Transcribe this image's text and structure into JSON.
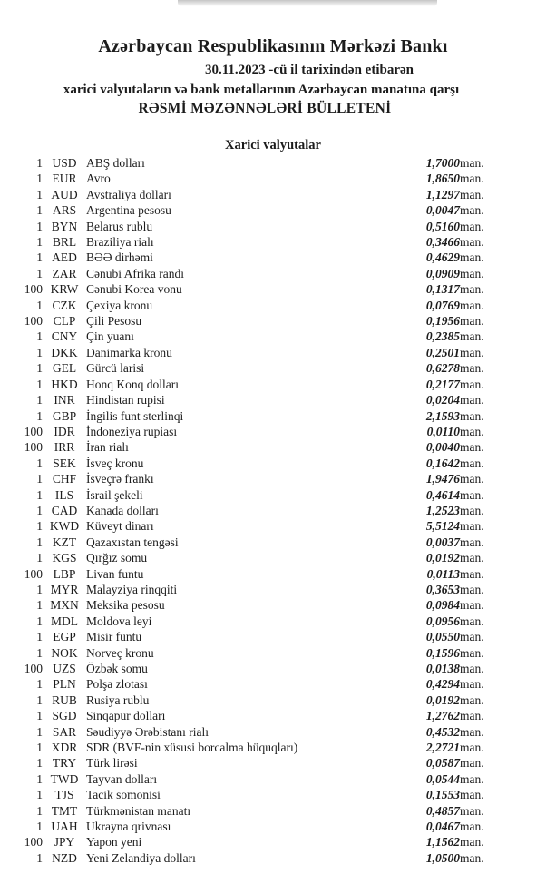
{
  "page": {
    "bank_title": "Azərbaycan Respublikasının Mərkəzi Bankı",
    "date_line": "30.11.2023 -cü il tarixindən etibarən",
    "scope_line": "xarici valyutaların və bank metallarının Azərbaycan manatına qarşı",
    "bulletin_title": "RƏSMİ MƏZƏNNƏLƏRİ BÜLLETENİ",
    "section_title": "Xarici valyutalar",
    "unit_label": "man.",
    "text_color": "#1c1c1c",
    "background_color": "#ffffff"
  },
  "rates": [
    {
      "qty": "1",
      "code": "USD",
      "name": "ABŞ dolları",
      "rate": "1,7000"
    },
    {
      "qty": "1",
      "code": "EUR",
      "name": "Avro",
      "rate": "1,8650"
    },
    {
      "qty": "1",
      "code": "AUD",
      "name": "Avstraliya dolları",
      "rate": "1,1297"
    },
    {
      "qty": "1",
      "code": "ARS",
      "name": "Argentina pesosu",
      "rate": "0,0047"
    },
    {
      "qty": "1",
      "code": "BYN",
      "name": "Belarus rublu",
      "rate": "0,5160"
    },
    {
      "qty": "1",
      "code": "BRL",
      "name": "Braziliya rialı",
      "rate": "0,3466"
    },
    {
      "qty": "1",
      "code": "AED",
      "name": "BƏƏ dirhəmi",
      "rate": "0,4629"
    },
    {
      "qty": "1",
      "code": "ZAR",
      "name": "Cənubi Afrika randı",
      "rate": "0,0909"
    },
    {
      "qty": "100",
      "code": "KRW",
      "name": "Cənubi Korea vonu",
      "rate": "0,1317"
    },
    {
      "qty": "1",
      "code": "CZK",
      "name": "Çexiya kronu",
      "rate": "0,0769"
    },
    {
      "qty": "100",
      "code": "CLP",
      "name": "Çili Pesosu",
      "rate": "0,1956"
    },
    {
      "qty": "1",
      "code": "CNY",
      "name": "Çin yuanı",
      "rate": "0,2385"
    },
    {
      "qty": "1",
      "code": "DKK",
      "name": "Danimarka kronu",
      "rate": "0,2501"
    },
    {
      "qty": "1",
      "code": "GEL",
      "name": "Gürcü larisi",
      "rate": "0,6278"
    },
    {
      "qty": "1",
      "code": "HKD",
      "name": "Honq Konq dolları",
      "rate": "0,2177"
    },
    {
      "qty": "1",
      "code": "INR",
      "name": "Hindistan rupisi",
      "rate": "0,0204"
    },
    {
      "qty": "1",
      "code": "GBP",
      "name": "İngilis funt sterlinqi",
      "rate": "2,1593"
    },
    {
      "qty": "100",
      "code": "IDR",
      "name": "İndoneziya rupiası",
      "rate": "0,0110"
    },
    {
      "qty": "100",
      "code": "IRR",
      "name": "İran rialı",
      "rate": "0,0040"
    },
    {
      "qty": "1",
      "code": "SEK",
      "name": "İsveç kronu",
      "rate": "0,1642"
    },
    {
      "qty": "1",
      "code": "CHF",
      "name": "İsveçrə frankı",
      "rate": "1,9476"
    },
    {
      "qty": "1",
      "code": "ILS",
      "name": "İsrail şekeli",
      "rate": "0,4614"
    },
    {
      "qty": "1",
      "code": "CAD",
      "name": "Kanada dolları",
      "rate": "1,2523"
    },
    {
      "qty": "1",
      "code": "KWD",
      "name": "Küveyt dinarı",
      "rate": "5,5124"
    },
    {
      "qty": "1",
      "code": "KZT",
      "name": "Qazaxıstan tengəsi",
      "rate": "0,0037"
    },
    {
      "qty": "1",
      "code": "KGS",
      "name": "Qırğız somu",
      "rate": "0,0192"
    },
    {
      "qty": "100",
      "code": "LBP",
      "name": "Livan funtu",
      "rate": "0,0113"
    },
    {
      "qty": "1",
      "code": "MYR",
      "name": "Malayziya rinqqiti",
      "rate": "0,3653"
    },
    {
      "qty": "1",
      "code": "MXN",
      "name": "Meksika pesosu",
      "rate": "0,0984"
    },
    {
      "qty": "1",
      "code": "MDL",
      "name": "Moldova leyi",
      "rate": "0,0956"
    },
    {
      "qty": "1",
      "code": "EGP",
      "name": "Misir funtu",
      "rate": "0,0550"
    },
    {
      "qty": "1",
      "code": "NOK",
      "name": "Norveç kronu",
      "rate": "0,1596"
    },
    {
      "qty": "100",
      "code": "UZS",
      "name": "Özbək somu",
      "rate": "0,0138"
    },
    {
      "qty": "1",
      "code": "PLN",
      "name": "Polşa zlotası",
      "rate": "0,4294"
    },
    {
      "qty": "1",
      "code": "RUB",
      "name": "Rusiya rublu",
      "rate": "0,0192"
    },
    {
      "qty": "1",
      "code": "SGD",
      "name": "Sinqapur dolları",
      "rate": "1,2762"
    },
    {
      "qty": "1",
      "code": "SAR",
      "name": "Səudiyyə Ərəbistanı rialı",
      "rate": "0,4532"
    },
    {
      "qty": "1",
      "code": "XDR",
      "name": "SDR (BVF-nin xüsusi borcalma hüquqları)",
      "rate": "2,2721"
    },
    {
      "qty": "1",
      "code": "TRY",
      "name": "Türk lirəsi",
      "rate": "0,0587"
    },
    {
      "qty": "1",
      "code": "TWD",
      "name": "Tayvan dolları",
      "rate": "0,0544"
    },
    {
      "qty": "1",
      "code": "TJS",
      "name": "Tacik somonisi",
      "rate": "0,1553"
    },
    {
      "qty": "1",
      "code": "TMT",
      "name": "Türkmənistan manatı",
      "rate": "0,4857"
    },
    {
      "qty": "1",
      "code": "UAH",
      "name": "Ukrayna qrivnası",
      "rate": "0,0467"
    },
    {
      "qty": "100",
      "code": "JPY",
      "name": "Yapon yeni",
      "rate": "1,1562"
    },
    {
      "qty": "1",
      "code": "NZD",
      "name": "Yeni Zelandiya dolları",
      "rate": "1,0500"
    }
  ]
}
